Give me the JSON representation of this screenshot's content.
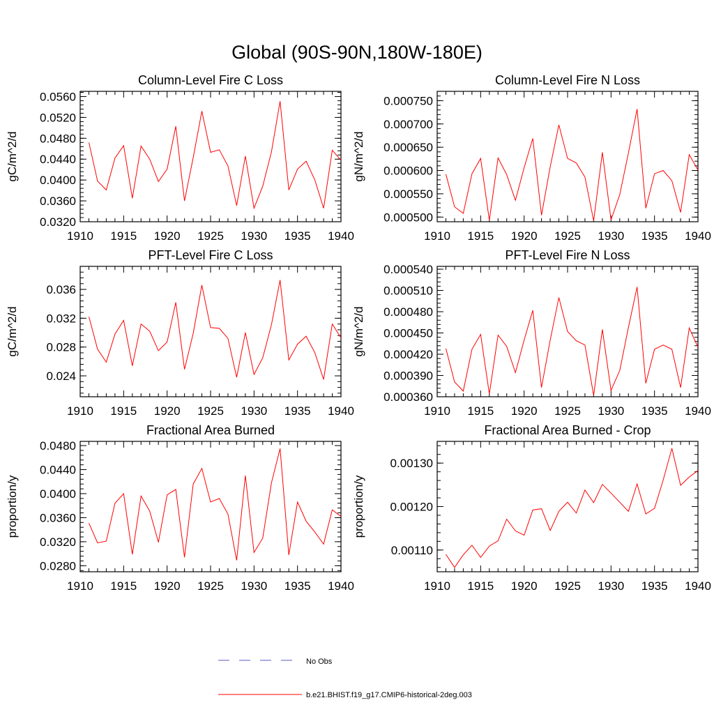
{
  "figure_title": "Global (90S-90N,180W-180E)",
  "colors": {
    "model_line": "#ff0000",
    "obs_line": "#5a5ac8",
    "axis": "#000000"
  },
  "legend": [
    {
      "label": "No Obs",
      "style": "dashed",
      "color": "#5a5ac8"
    },
    {
      "label": "b.e21.BHIST.f19_g17.CMIP6-historical-2deg.003",
      "style": "solid",
      "color": "#ff0000"
    }
  ],
  "chart_data": [
    {
      "type": "line",
      "title": "Column-Level Fire C Loss",
      "xlabel": "",
      "ylabel": "gC/m^2/d",
      "xlim": [
        1910,
        1940
      ],
      "ylim": [
        0.032,
        0.057
      ],
      "x_ticks": [
        1910,
        1915,
        1920,
        1925,
        1930,
        1935,
        1940
      ],
      "y_ticks": [
        0.032,
        0.036,
        0.04,
        0.044,
        0.048,
        0.052,
        0.056
      ],
      "y_tick_labels": [
        "0.0320",
        "0.0360",
        "0.0400",
        "0.0440",
        "0.0480",
        "0.0520",
        "0.0560"
      ],
      "series": [
        {
          "x": [
            1911,
            1912,
            1913,
            1914,
            1915,
            1916,
            1917,
            1918,
            1919,
            1920,
            1921,
            1922,
            1923,
            1924,
            1925,
            1926,
            1927,
            1928,
            1929,
            1930,
            1931,
            1932,
            1933,
            1934,
            1935,
            1936,
            1937,
            1938,
            1939,
            1940
          ],
          "values": [
            0.0472,
            0.0398,
            0.0381,
            0.0442,
            0.0466,
            0.0365,
            0.0465,
            0.044,
            0.0397,
            0.0421,
            0.0503,
            0.036,
            0.0443,
            0.0532,
            0.0453,
            0.0458,
            0.0427,
            0.0351,
            0.0446,
            0.0346,
            0.0388,
            0.0454,
            0.0551,
            0.0381,
            0.0421,
            0.0436,
            0.04,
            0.0346,
            0.0457,
            0.0438
          ]
        }
      ]
    },
    {
      "type": "line",
      "title": "Column-Level Fire N Loss",
      "xlabel": "",
      "ylabel": "gN/m^2/d",
      "xlim": [
        1910,
        1940
      ],
      "ylim": [
        0.00049,
        0.00077
      ],
      "x_ticks": [
        1910,
        1915,
        1920,
        1925,
        1930,
        1935,
        1940
      ],
      "y_ticks": [
        0.0005,
        0.00055,
        0.0006,
        0.00065,
        0.0007,
        0.00075
      ],
      "y_tick_labels": [
        "0.000500",
        "0.000550",
        "0.000600",
        "0.000650",
        "0.000700",
        "0.000750"
      ],
      "series": [
        {
          "x": [
            1911,
            1912,
            1913,
            1914,
            1915,
            1916,
            1917,
            1918,
            1919,
            1920,
            1921,
            1922,
            1923,
            1924,
            1925,
            1926,
            1927,
            1928,
            1929,
            1930,
            1931,
            1932,
            1933,
            1934,
            1935,
            1936,
            1937,
            1938,
            1939,
            1940
          ],
          "values": [
            0.000592,
            0.000522,
            0.000508,
            0.000593,
            0.000626,
            0.000493,
            0.000627,
            0.000591,
            0.000536,
            0.000606,
            0.000669,
            0.000504,
            0.000608,
            0.000698,
            0.000626,
            0.000616,
            0.000586,
            0.000492,
            0.000639,
            0.000494,
            0.000548,
            0.000638,
            0.000732,
            0.000519,
            0.000593,
            0.0006,
            0.000578,
            0.00051,
            0.000634,
            0.000601
          ]
        }
      ]
    },
    {
      "type": "line",
      "title": "PFT-Level Fire C Loss",
      "xlabel": "",
      "ylabel": "gC/m^2/d",
      "xlim": [
        1910,
        1940
      ],
      "ylim": [
        0.0211,
        0.0392
      ],
      "x_ticks": [
        1910,
        1915,
        1920,
        1925,
        1930,
        1935,
        1940
      ],
      "y_ticks": [
        0.024,
        0.028,
        0.032,
        0.036
      ],
      "y_tick_labels": [
        "0.024",
        "0.028",
        "0.032",
        "0.036"
      ],
      "series": [
        {
          "x": [
            1911,
            1912,
            1913,
            1914,
            1915,
            1916,
            1917,
            1918,
            1919,
            1920,
            1921,
            1922,
            1923,
            1924,
            1925,
            1926,
            1927,
            1928,
            1929,
            1930,
            1931,
            1932,
            1933,
            1934,
            1935,
            1936,
            1937,
            1938,
            1939,
            1940
          ],
          "values": [
            0.0322,
            0.0277,
            0.0259,
            0.0298,
            0.0317,
            0.0254,
            0.0312,
            0.0302,
            0.0275,
            0.0287,
            0.0342,
            0.0249,
            0.0299,
            0.0366,
            0.0307,
            0.0306,
            0.0292,
            0.0238,
            0.03,
            0.0242,
            0.0265,
            0.0311,
            0.0373,
            0.0262,
            0.0284,
            0.0295,
            0.0272,
            0.0235,
            0.0312,
            0.0293
          ]
        }
      ]
    },
    {
      "type": "line",
      "title": "PFT-Level Fire N Loss",
      "xlabel": "",
      "ylabel": "gN/m^2/d",
      "xlim": [
        1910,
        1940
      ],
      "ylim": [
        0.00036,
        0.000544
      ],
      "x_ticks": [
        1910,
        1915,
        1920,
        1925,
        1930,
        1935,
        1940
      ],
      "y_ticks": [
        0.00036,
        0.00039,
        0.00042,
        0.00045,
        0.00048,
        0.00051,
        0.00054
      ],
      "y_tick_labels": [
        "0.000360",
        "0.000390",
        "0.000420",
        "0.000450",
        "0.000480",
        "0.000510",
        "0.000540"
      ],
      "series": [
        {
          "x": [
            1911,
            1912,
            1913,
            1914,
            1915,
            1916,
            1917,
            1918,
            1919,
            1920,
            1921,
            1922,
            1923,
            1924,
            1925,
            1926,
            1927,
            1928,
            1929,
            1930,
            1931,
            1932,
            1933,
            1934,
            1935,
            1936,
            1937,
            1938,
            1939,
            1940
          ],
          "values": [
            0.000428,
            0.000381,
            0.000368,
            0.000427,
            0.000448,
            0.000364,
            0.000447,
            0.000431,
            0.000394,
            0.00044,
            0.000482,
            0.000373,
            0.00044,
            0.0005,
            0.000452,
            0.000439,
            0.000433,
            0.000362,
            0.000455,
            0.000369,
            0.000397,
            0.000458,
            0.000515,
            0.000379,
            0.000427,
            0.000433,
            0.000427,
            0.000373,
            0.000457,
            0.00043
          ]
        }
      ]
    },
    {
      "type": "line",
      "title": "Fractional Area Burned",
      "xlabel": "",
      "ylabel": "proportion/y",
      "xlim": [
        1910,
        1940
      ],
      "ylim": [
        0.027,
        0.0487
      ],
      "x_ticks": [
        1910,
        1915,
        1920,
        1925,
        1930,
        1935,
        1940
      ],
      "y_ticks": [
        0.028,
        0.032,
        0.036,
        0.04,
        0.044,
        0.048
      ],
      "y_tick_labels": [
        "0.0280",
        "0.0320",
        "0.0360",
        "0.0400",
        "0.0440",
        "0.0480"
      ],
      "series": [
        {
          "x": [
            1911,
            1912,
            1913,
            1914,
            1915,
            1916,
            1917,
            1918,
            1919,
            1920,
            1921,
            1922,
            1923,
            1924,
            1925,
            1926,
            1927,
            1928,
            1929,
            1930,
            1931,
            1932,
            1933,
            1934,
            1935,
            1936,
            1937,
            1938,
            1939,
            1940
          ],
          "values": [
            0.0351,
            0.0318,
            0.0321,
            0.0384,
            0.04,
            0.0299,
            0.0396,
            0.0371,
            0.0319,
            0.0398,
            0.0407,
            0.0294,
            0.0416,
            0.0442,
            0.0386,
            0.0392,
            0.0366,
            0.0289,
            0.043,
            0.0302,
            0.0326,
            0.0418,
            0.0475,
            0.0298,
            0.0386,
            0.0354,
            0.0336,
            0.0316,
            0.0373,
            0.0362
          ]
        }
      ]
    },
    {
      "type": "line",
      "title": "Fractional Area Burned - Crop",
      "xlabel": "",
      "ylabel": "proportion/y",
      "xlim": [
        1910,
        1940
      ],
      "ylim": [
        0.00105,
        0.00135
      ],
      "x_ticks": [
        1910,
        1915,
        1920,
        1925,
        1930,
        1935,
        1940
      ],
      "y_ticks": [
        0.0011,
        0.0012,
        0.0013
      ],
      "y_tick_labels": [
        "0.00110",
        "0.00120",
        "0.00130"
      ],
      "series": [
        {
          "x": [
            1911,
            1912,
            1913,
            1914,
            1915,
            1916,
            1917,
            1918,
            1919,
            1920,
            1921,
            1922,
            1923,
            1924,
            1925,
            1926,
            1927,
            1928,
            1929,
            1930,
            1931,
            1932,
            1933,
            1934,
            1935,
            1936,
            1937,
            1938,
            1939,
            1940
          ],
          "values": [
            0.00109,
            0.00106,
            0.001089,
            0.001111,
            0.001083,
            0.001109,
            0.001121,
            0.001171,
            0.001144,
            0.001134,
            0.001192,
            0.001195,
            0.001145,
            0.001189,
            0.00121,
            0.001185,
            0.001238,
            0.001209,
            0.001251,
            0.001231,
            0.00121,
            0.001189,
            0.001252,
            0.001183,
            0.001196,
            0.001261,
            0.001334,
            0.001249,
            0.001268,
            0.001283
          ]
        }
      ]
    }
  ]
}
